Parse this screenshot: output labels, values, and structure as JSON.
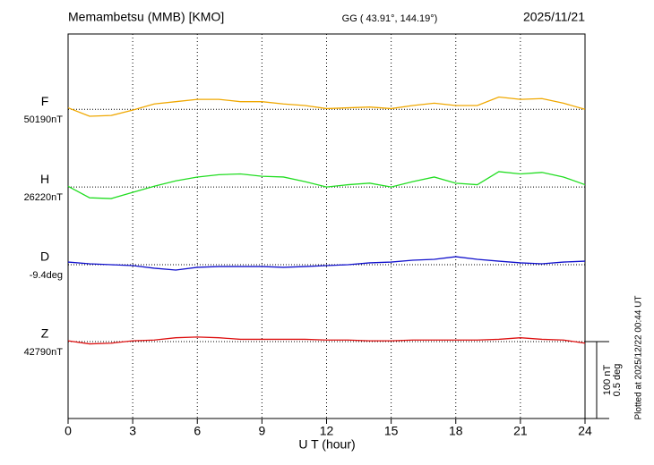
{
  "chart_data": {
    "type": "line",
    "title": "Memambetsu (MMB)  [KMO]",
    "subtitle": "GG ( 43.91°, 144.19°)",
    "date": "2025/11/21",
    "note": "Plotted at 2025/12/22 00:44 UT",
    "xlabel": "U T (hour)",
    "xlim": [
      0,
      24
    ],
    "xticks": [
      0,
      3,
      6,
      9,
      12,
      15,
      18,
      21,
      24
    ],
    "grid": true,
    "x": [
      0,
      1,
      2,
      3,
      4,
      5,
      6,
      7,
      8,
      9,
      10,
      11,
      12,
      13,
      14,
      15,
      16,
      17,
      18,
      19,
      20,
      21,
      22,
      23,
      24
    ],
    "scale_bar": [
      {
        "value": 100,
        "label": "100 nT"
      },
      {
        "value": 0.5,
        "label": "0.5 deg"
      }
    ],
    "series": [
      {
        "name": "F",
        "color": "#f0a800",
        "baseline": {
          "value": 50190,
          "label": "50190nT"
        },
        "ylim": [
          49788,
          50288
        ],
        "values": [
          50192,
          50181,
          50182,
          50189,
          50197,
          50200,
          50203,
          50203,
          50200,
          50200,
          50197,
          50195,
          50191,
          50192,
          50193,
          50191,
          50195,
          50198,
          50195,
          50195,
          50206,
          50203,
          50204,
          50198,
          50190
        ]
      },
      {
        "name": "H",
        "color": "#22dd22",
        "baseline": {
          "value": 26220,
          "label": "26220nT"
        },
        "ylim": [
          25919,
          26419
        ],
        "values": [
          26221,
          26206,
          26205,
          26213,
          26221,
          26228,
          26233,
          26236,
          26237,
          26234,
          26233,
          26227,
          26220,
          26223,
          26225,
          26220,
          26227,
          26233,
          26225,
          26223,
          26240,
          26237,
          26239,
          26233,
          26223
        ]
      },
      {
        "name": "D",
        "color": "#1010cc",
        "baseline": {
          "value": -9.4,
          "label": "-9.4deg"
        },
        "ylim": [
          -10.4,
          -7.9
        ],
        "values": [
          -9.383,
          -9.394,
          -9.4,
          -9.406,
          -9.423,
          -9.435,
          -9.417,
          -9.412,
          -9.412,
          -9.412,
          -9.417,
          -9.412,
          -9.406,
          -9.4,
          -9.388,
          -9.383,
          -9.371,
          -9.365,
          -9.348,
          -9.365,
          -9.377,
          -9.388,
          -9.394,
          -9.383,
          -9.377
        ]
      },
      {
        "name": "Z",
        "color": "#dd1010",
        "baseline": {
          "value": 42790,
          "label": "42790nT"
        },
        "ylim": [
          42690,
          43190
        ],
        "values": [
          42791,
          42787,
          42788,
          42791,
          42792,
          42795,
          42796,
          42795,
          42793,
          42793,
          42793,
          42793,
          42792,
          42792,
          42791,
          42791,
          42792,
          42792,
          42792,
          42792,
          42793,
          42795,
          42793,
          42792,
          42788
        ]
      }
    ]
  }
}
